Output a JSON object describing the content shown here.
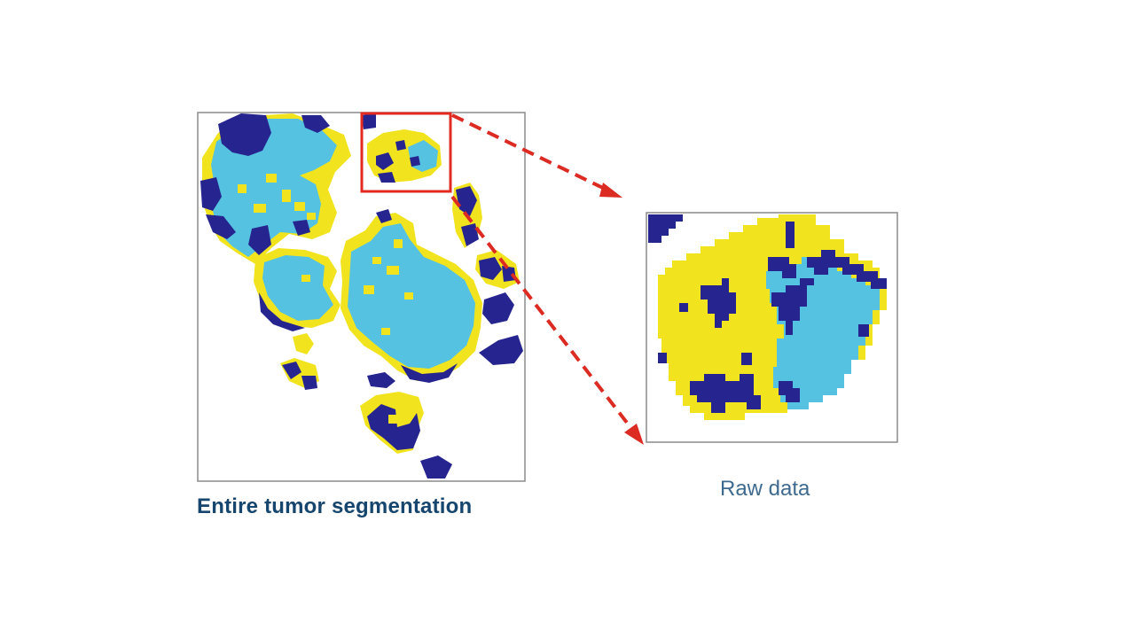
{
  "captions": {
    "entire": "Entire tumor segmentation",
    "raw": "Raw data"
  },
  "colors": {
    "yellow": "#f1e41f",
    "light_blue": "#54c2e0",
    "dark_blue": "#26258f",
    "highlight_box": "#e02a22",
    "arrow": "#dc2b22",
    "frame": "#8a8a8a",
    "caption_left": "#16456e",
    "caption_right": "#3f6a8f"
  }
}
